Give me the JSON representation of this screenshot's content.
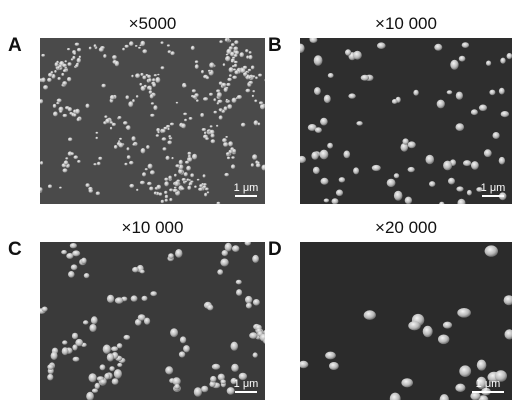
{
  "panels": [
    {
      "label": "A",
      "magnification": "×5000",
      "scale_bar": "1 μm"
    },
    {
      "label": "B",
      "magnification": "×10 000",
      "scale_bar": "1 μm"
    },
    {
      "label": "C",
      "magnification": "×10 000",
      "scale_bar": "1 μm"
    },
    {
      "label": "D",
      "magnification": "×20 000",
      "scale_bar": "1 μm"
    }
  ]
}
